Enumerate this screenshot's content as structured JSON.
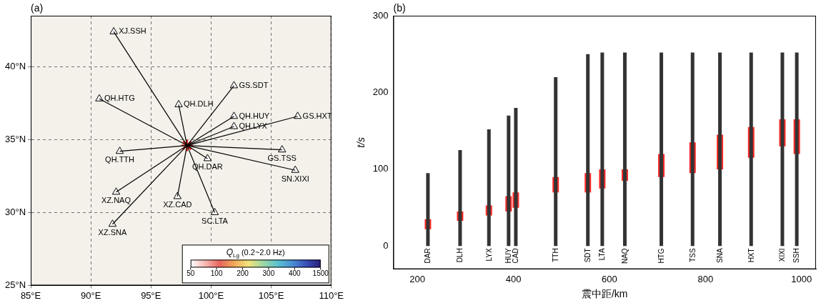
{
  "chart_data": [
    {
      "type": "map",
      "panel": "(a)",
      "xlim": [
        85,
        110
      ],
      "xticks": [
        {
          "value": 85,
          "label": "85°E"
        },
        {
          "value": 90,
          "label": "90°E"
        },
        {
          "value": 95,
          "label": "95°E"
        },
        {
          "value": 100,
          "label": "100°E"
        },
        {
          "value": 105,
          "label": "105°E"
        },
        {
          "value": 110,
          "label": "110°E"
        }
      ],
      "ylim": [
        25,
        43.5
      ],
      "yticks": [
        {
          "value": 25,
          "label": "25°N"
        },
        {
          "value": 30,
          "label": "30°N"
        },
        {
          "value": 35,
          "label": "35°N"
        },
        {
          "value": 40,
          "label": "40°N"
        }
      ],
      "grid": true,
      "epicenter": {
        "x": 98,
        "y": 34.6,
        "color": "#e00000",
        "marker": "star"
      },
      "stations": {
        "marker": "triangle",
        "color": "#ffffff",
        "labels": [
          "XJ.SSH",
          "GS.SDT",
          "QH.HTG",
          "QH.DLH",
          "QH.HUY",
          "QH.LYX",
          "GS.HXT",
          "GS.TSS",
          "QH.TTH",
          "QH.DAR",
          "SN.XIXI",
          "XZ.NAQ",
          "XZ.CAD",
          "SC.LTA",
          "XZ.SNA"
        ],
        "x": [
          91.9,
          101.9,
          90.7,
          97.3,
          101.9,
          101.9,
          107.2,
          105.9,
          92.4,
          99.7,
          107.0,
          92.1,
          97.2,
          100.3,
          91.8
        ],
        "y": [
          42.4,
          38.7,
          37.8,
          37.4,
          36.6,
          35.9,
          36.6,
          34.3,
          34.2,
          33.7,
          32.9,
          31.4,
          31.1,
          30.0,
          29.2
        ]
      },
      "colorbar": {
        "label": "Q",
        "label_sub": "Lg",
        "label_suffix": " (0.2~2.0 Hz)",
        "range": [
          50,
          1500
        ],
        "ticks": [
          50,
          100,
          200,
          300,
          400,
          1500
        ],
        "colors": [
          "#ffffff",
          "#f6b9b4",
          "#e8655f",
          "#f0a85a",
          "#f3e37a",
          "#9fd7a3",
          "#5cc3cf",
          "#4a90d6",
          "#3a4fb8",
          "#2a1f7a"
        ]
      }
    },
    {
      "type": "record_section",
      "panel": "(b)",
      "x_label": "震中距/km",
      "y_label": "t/s",
      "xlim": [
        150,
        1030
      ],
      "xticks": [
        200,
        400,
        600,
        800,
        1000
      ],
      "ylim": [
        -30,
        300
      ],
      "yticks": [
        0,
        100,
        200,
        300
      ],
      "grid": false,
      "color": "#333333",
      "lg_color": "#ff2a2a",
      "traces": [
        {
          "station": "DAR",
          "distance": 222,
          "t_range": [
            0,
            95
          ],
          "lg_window": [
            22,
            35
          ]
        },
        {
          "station": "DLH",
          "distance": 289,
          "t_range": [
            0,
            125
          ],
          "lg_window": [
            33,
            45
          ]
        },
        {
          "station": "LYX",
          "distance": 349,
          "t_range": [
            0,
            152
          ],
          "lg_window": [
            40,
            53
          ]
        },
        {
          "station": "HUY",
          "distance": 390,
          "t_range": [
            0,
            170
          ],
          "lg_window": [
            45,
            65
          ]
        },
        {
          "station": "CAD",
          "distance": 405,
          "t_range": [
            0,
            180
          ],
          "lg_window": [
            50,
            70
          ]
        },
        {
          "station": "TTH",
          "distance": 488,
          "t_range": [
            0,
            220
          ],
          "lg_window": [
            70,
            90
          ]
        },
        {
          "station": "SDT",
          "distance": 555,
          "t_range": [
            0,
            250
          ],
          "lg_window": [
            70,
            95
          ]
        },
        {
          "station": "LTA",
          "distance": 585,
          "t_range": [
            0,
            252
          ],
          "lg_window": [
            75,
            100
          ]
        },
        {
          "station": "NAQ",
          "distance": 632,
          "t_range": [
            0,
            252
          ],
          "lg_window": [
            85,
            100
          ]
        },
        {
          "station": "HTG",
          "distance": 708,
          "t_range": [
            0,
            252
          ],
          "lg_window": [
            90,
            120
          ]
        },
        {
          "station": "TSS",
          "distance": 773,
          "t_range": [
            0,
            252
          ],
          "lg_window": [
            95,
            135
          ]
        },
        {
          "station": "SNA",
          "distance": 830,
          "t_range": [
            0,
            252
          ],
          "lg_window": [
            100,
            145
          ]
        },
        {
          "station": "HXT",
          "distance": 895,
          "t_range": [
            0,
            252
          ],
          "lg_window": [
            115,
            155
          ]
        },
        {
          "station": "XIXI",
          "distance": 960,
          "t_range": [
            0,
            252
          ],
          "lg_window": [
            130,
            165
          ]
        },
        {
          "station": "SSH",
          "distance": 990,
          "t_range": [
            0,
            252
          ],
          "lg_window": [
            120,
            165
          ]
        }
      ]
    }
  ]
}
